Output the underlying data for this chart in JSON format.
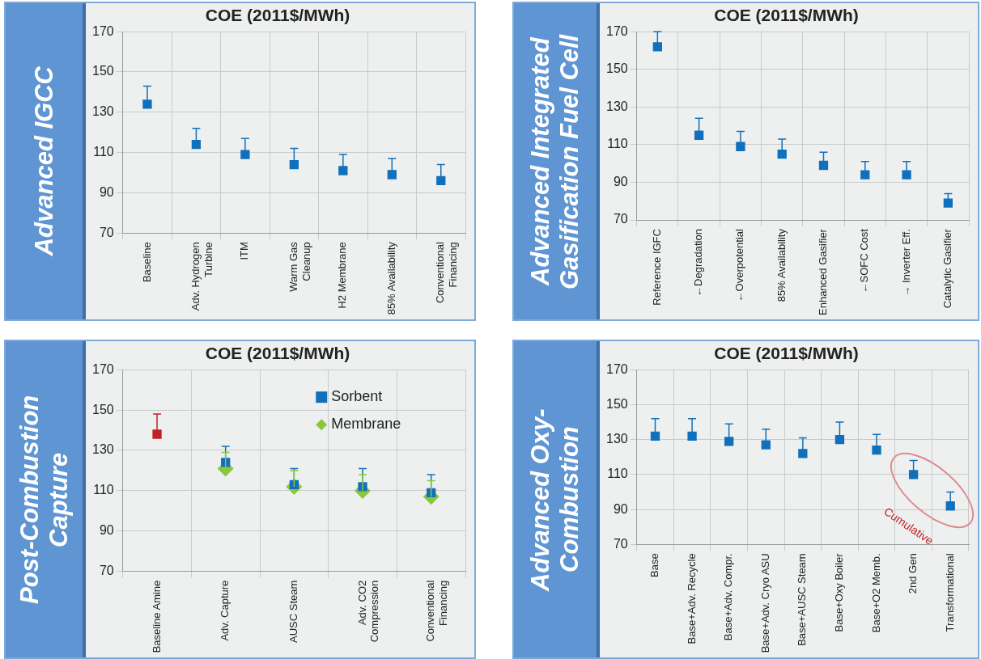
{
  "chart_data": [
    {
      "type": "scatter",
      "title": "COE (2011$/MWh)",
      "ylabel": "Advanced IGCC",
      "categories": [
        "Baseline",
        "Adv. Hydrogen Turbine",
        "ITM",
        "Warm Gas Cleanup",
        "H2 Membrane",
        "85% Availability",
        "Conventional Financing"
      ],
      "series": [
        {
          "color": "#1170bb",
          "marker": "square",
          "values": [
            134,
            114,
            109,
            104,
            101,
            99,
            96
          ],
          "errors": [
            [
              134,
              143
            ],
            [
              114,
              122
            ],
            [
              109,
              117
            ],
            [
              104,
              112
            ],
            [
              101,
              109
            ],
            [
              99,
              107
            ],
            [
              96,
              104
            ]
          ]
        }
      ],
      "ylim": [
        70,
        170
      ],
      "yticks": [
        70,
        90,
        110,
        130,
        150,
        170
      ],
      "grid": true
    },
    {
      "type": "scatter",
      "title": "COE (2011$/MWh)",
      "ylabel": "Advanced Integrated Gasification Fuel Cell",
      "categories": [
        "Reference IGFC",
        "←Degradation",
        "←Overpotential",
        "85% Availability",
        "Enhanced Gasifier",
        "←SOFC Cost",
        "→ Inverter Eff.",
        "Catalytic Gasifier"
      ],
      "series": [
        {
          "color": "#1170bb",
          "marker": "square",
          "values": [
            162,
            115,
            109,
            105,
            99,
            94,
            94,
            79
          ],
          "errors": [
            [
              162,
              170
            ],
            [
              115,
              124
            ],
            [
              109,
              117
            ],
            [
              105,
              113
            ],
            [
              99,
              106
            ],
            [
              94,
              101
            ],
            [
              94,
              101
            ],
            [
              79,
              84
            ]
          ]
        }
      ],
      "ylim": [
        70,
        170
      ],
      "yticks": [
        70,
        90,
        110,
        130,
        150,
        170
      ],
      "grid": true
    },
    {
      "type": "scatter",
      "title": "COE (2011$/MWh)",
      "ylabel": "Post-Combustion Capture",
      "categories": [
        "Baseline Amine",
        "Adv. Capture",
        "AUSC Steam",
        "Adv. CO2 Compression",
        "Conventional Financing"
      ],
      "legend": "top right",
      "series": [
        {
          "color": "#c0202a",
          "marker": "square",
          "values": [
            138,
            null,
            null,
            null,
            null
          ],
          "errors": [
            [
              138,
              148
            ],
            null,
            null,
            null,
            null
          ]
        },
        {
          "name": "Sorbent",
          "color": "#1170bb",
          "marker": "square",
          "values": [
            null,
            124,
            113,
            112,
            109
          ],
          "errors": [
            null,
            [
              124,
              132
            ],
            [
              113,
              121
            ],
            [
              112,
              121
            ],
            [
              109,
              118
            ]
          ]
        },
        {
          "name": "Membrane",
          "color": "#8cc63f",
          "marker": "diamond",
          "values": [
            null,
            121,
            112,
            110,
            107
          ],
          "errors": [
            null,
            [
              121,
              129
            ],
            [
              112,
              120
            ],
            [
              110,
              118
            ],
            [
              107,
              115
            ]
          ]
        }
      ],
      "ylim": [
        70,
        170
      ],
      "yticks": [
        70,
        90,
        110,
        130,
        150,
        170
      ],
      "grid": true
    },
    {
      "type": "scatter",
      "title": "COE (2011$/MWh)",
      "ylabel": "Advanced Oxy-Combustion",
      "categories": [
        "Base",
        "Base+Adv. Recycle",
        "Base+Adv. Compr.",
        "Base+Adv. Cryo ASU",
        "Base+AUSC Steam",
        "Base+Oxy Boiler",
        "Base+O2 Memb.",
        "2nd Gen",
        "Transformational"
      ],
      "series": [
        {
          "color": "#1170bb",
          "marker": "square",
          "values": [
            132,
            132,
            129,
            127,
            122,
            130,
            124,
            110,
            92
          ],
          "errors": [
            [
              132,
              142
            ],
            [
              132,
              142
            ],
            [
              129,
              139
            ],
            [
              127,
              136
            ],
            [
              122,
              131
            ],
            [
              130,
              140
            ],
            [
              124,
              133
            ],
            [
              110,
              118
            ],
            [
              92,
              100
            ]
          ]
        }
      ],
      "ylim": [
        70,
        170
      ],
      "yticks": [
        70,
        90,
        110,
        130,
        150,
        170
      ],
      "grid": true,
      "annotations": [
        "Cumulative"
      ]
    }
  ]
}
